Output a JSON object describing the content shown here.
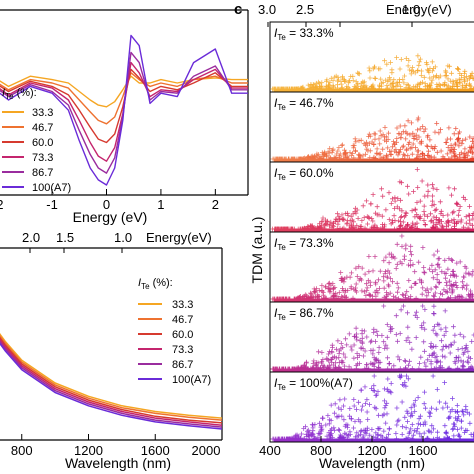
{
  "chart_data": [
    {
      "id": "a",
      "type": "line",
      "xlabel": "Energy (eV)",
      "xlim": [
        -2.6,
        2.6
      ],
      "x_ticks": [
        -2,
        -1,
        0,
        1,
        2
      ],
      "legend_title_main": "I",
      "legend_title_sub": "Te",
      "legend_title_suffix": " (%):",
      "series": [
        {
          "name": "33.3",
          "color": "#F5A623",
          "x": [
            -2.6,
            -2.2,
            -1.8,
            -1.4,
            -1.0,
            -0.7,
            -0.5,
            -0.3,
            -0.15,
            0.0,
            0.15,
            0.3,
            0.45,
            0.6,
            0.8,
            1.0,
            1.3,
            1.6,
            2.0,
            2.3,
            2.6
          ],
          "y": [
            0.64,
            0.66,
            0.58,
            0.64,
            0.62,
            0.6,
            0.55,
            0.5,
            0.47,
            0.46,
            0.49,
            0.56,
            0.64,
            0.6,
            0.6,
            0.62,
            0.6,
            0.62,
            0.63,
            0.62,
            0.62
          ]
        },
        {
          "name": "46.7",
          "color": "#EE7230",
          "x": [
            -2.6,
            -2.2,
            -1.8,
            -1.4,
            -1.0,
            -0.7,
            -0.5,
            -0.3,
            -0.15,
            0.0,
            0.15,
            0.3,
            0.45,
            0.6,
            0.8,
            1.0,
            1.3,
            1.6,
            2.0,
            2.3,
            2.6
          ],
          "y": [
            0.62,
            0.64,
            0.56,
            0.62,
            0.6,
            0.57,
            0.5,
            0.43,
            0.38,
            0.36,
            0.4,
            0.52,
            0.66,
            0.62,
            0.58,
            0.6,
            0.58,
            0.62,
            0.64,
            0.6,
            0.6
          ]
        },
        {
          "name": "60.0",
          "color": "#D63A2F",
          "x": [
            -2.6,
            -2.2,
            -1.8,
            -1.4,
            -1.0,
            -0.7,
            -0.5,
            -0.3,
            -0.15,
            0.0,
            0.15,
            0.3,
            0.45,
            0.6,
            0.8,
            1.0,
            1.3,
            1.6,
            2.0,
            2.3,
            2.6
          ],
          "y": [
            0.6,
            0.63,
            0.55,
            0.61,
            0.58,
            0.53,
            0.44,
            0.34,
            0.27,
            0.25,
            0.3,
            0.46,
            0.68,
            0.63,
            0.55,
            0.58,
            0.56,
            0.6,
            0.66,
            0.58,
            0.58
          ]
        },
        {
          "name": "73.3",
          "color": "#C4256E",
          "x": [
            -2.6,
            -2.2,
            -1.8,
            -1.4,
            -1.0,
            -0.7,
            -0.5,
            -0.3,
            -0.15,
            0.0,
            0.15,
            0.3,
            0.45,
            0.6,
            0.8,
            1.0,
            1.3,
            1.6,
            2.0,
            2.3,
            2.6
          ],
          "y": [
            0.59,
            0.62,
            0.53,
            0.6,
            0.57,
            0.5,
            0.38,
            0.25,
            0.17,
            0.14,
            0.22,
            0.42,
            0.72,
            0.66,
            0.52,
            0.56,
            0.55,
            0.62,
            0.68,
            0.57,
            0.57
          ]
        },
        {
          "name": "86.7",
          "color": "#9A2C9E",
          "x": [
            -2.6,
            -2.2,
            -1.8,
            -1.4,
            -1.0,
            -0.7,
            -0.5,
            -0.3,
            -0.15,
            0.0,
            0.15,
            0.3,
            0.45,
            0.6,
            0.8,
            1.0,
            1.3,
            1.6,
            2.0,
            2.3,
            2.6
          ],
          "y": [
            0.58,
            0.61,
            0.52,
            0.59,
            0.55,
            0.47,
            0.32,
            0.18,
            0.1,
            0.07,
            0.16,
            0.4,
            0.78,
            0.72,
            0.5,
            0.55,
            0.54,
            0.64,
            0.7,
            0.56,
            0.56
          ]
        },
        {
          "name": "100(A7)",
          "color": "#6A2BD8",
          "x": [
            -2.6,
            -2.2,
            -1.8,
            -1.4,
            -1.0,
            -0.7,
            -0.5,
            -0.3,
            -0.15,
            0.0,
            0.15,
            0.3,
            0.45,
            0.6,
            0.8,
            1.0,
            1.3,
            1.6,
            2.0,
            2.3,
            2.6
          ],
          "y": [
            0.57,
            0.6,
            0.5,
            0.58,
            0.54,
            0.44,
            0.26,
            0.1,
            0.03,
            0.0,
            0.1,
            0.38,
            0.88,
            0.82,
            0.48,
            0.54,
            0.52,
            0.72,
            0.8,
            0.54,
            0.54
          ]
        }
      ]
    },
    {
      "id": "b",
      "type": "line",
      "xlabel": "Wavelength (nm)",
      "top_label": "Energy(eV)",
      "xlim": [
        400,
        2000
      ],
      "x_ticks": [
        800,
        1200,
        1600,
        2000
      ],
      "top_ticks": [
        "2.0",
        "1.5",
        "1.0"
      ],
      "legend_title_main": "I",
      "legend_title_sub": "Te",
      "legend_title_suffix": " (%):",
      "x": [
        400,
        500,
        600,
        700,
        800,
        1000,
        1200,
        1400,
        1600,
        1800,
        2000
      ],
      "series": [
        {
          "name": "33.3",
          "color": "#F5A623",
          "y": [
            0.96,
            0.8,
            0.64,
            0.52,
            0.42,
            0.3,
            0.23,
            0.18,
            0.15,
            0.13,
            0.115
          ]
        },
        {
          "name": "46.7",
          "color": "#EE7230",
          "y": [
            0.96,
            0.79,
            0.63,
            0.51,
            0.41,
            0.29,
            0.22,
            0.17,
            0.14,
            0.12,
            0.105
          ]
        },
        {
          "name": "60.0",
          "color": "#D63A2F",
          "y": [
            0.96,
            0.79,
            0.62,
            0.5,
            0.4,
            0.28,
            0.21,
            0.16,
            0.125,
            0.105,
            0.09
          ]
        },
        {
          "name": "73.3",
          "color": "#C4256E",
          "y": [
            0.96,
            0.78,
            0.61,
            0.49,
            0.39,
            0.27,
            0.2,
            0.15,
            0.115,
            0.095,
            0.078
          ]
        },
        {
          "name": "86.7",
          "color": "#9A2C9E",
          "y": [
            0.96,
            0.78,
            0.6,
            0.48,
            0.38,
            0.26,
            0.19,
            0.14,
            0.105,
            0.085,
            0.068
          ]
        },
        {
          "name": "100(A7)",
          "color": "#6A2BD8",
          "y": [
            0.96,
            0.77,
            0.59,
            0.47,
            0.37,
            0.25,
            0.18,
            0.13,
            0.095,
            0.075,
            0.058
          ]
        }
      ]
    },
    {
      "id": "c",
      "type": "scatter",
      "panel_label": "c",
      "xlabel": "Wavelength (nm)",
      "ylabel": "TDM (a.u.)",
      "top_label": "Energy(eV)",
      "xlim": [
        400,
        2000
      ],
      "x_ticks": [
        400,
        800,
        1200,
        1600
      ],
      "top_ticks": [
        "3.0",
        "2.5",
        "1.5",
        "1.0"
      ],
      "subplots": [
        {
          "label_main": "I",
          "label_sub": "Te",
          "label_value": " = 33.3%",
          "start": "#F6B33A",
          "end": "#F5A020",
          "peak_x": 1500,
          "height": 0.45,
          "spread": 0.35
        },
        {
          "label_main": "I",
          "label_sub": "Te",
          "label_value": " = 46.7%",
          "start": "#F0804A",
          "end": "#E8432C",
          "peak_x": 1550,
          "height": 0.55,
          "spread": 0.45
        },
        {
          "label_main": "I",
          "label_sub": "Te",
          "label_value": " = 60.0%",
          "start": "#E0405E",
          "end": "#D31F5E",
          "peak_x": 1550,
          "height": 0.65,
          "spread": 0.55
        },
        {
          "label_main": "I",
          "label_sub": "Te",
          "label_value": " = 73.3%",
          "start": "#D8366C",
          "end": "#B0289A",
          "peak_x": 1500,
          "height": 0.75,
          "spread": 0.6
        },
        {
          "label_main": "I",
          "label_sub": "Te",
          "label_value": " = 86.7%",
          "start": "#C4308A",
          "end": "#8A2AC0",
          "peak_x": 1500,
          "height": 0.85,
          "spread": 0.65
        },
        {
          "label_main": "I",
          "label_sub": "Te",
          "label_value": " = 100%(A7)",
          "start": "#9A30C8",
          "end": "#6A28E0",
          "peak_x": 1450,
          "height": 0.9,
          "spread": 0.7
        }
      ]
    }
  ]
}
